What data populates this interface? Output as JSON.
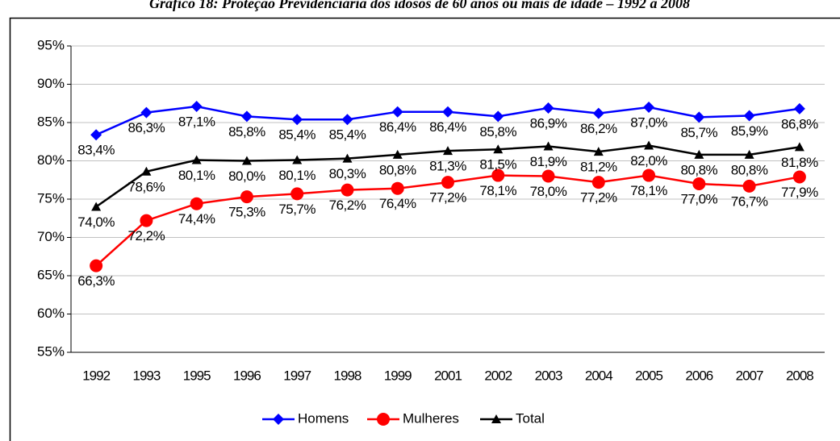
{
  "chart_data": {
    "type": "line",
    "title": "Gráfico 18: Proteção Previdenciária dos idosos de 60 anos ou mais de idade – 1992 a 2008",
    "categories": [
      "1992",
      "1993",
      "1995",
      "1996",
      "1997",
      "1998",
      "1999",
      "2001",
      "2002",
      "2003",
      "2004",
      "2005",
      "2006",
      "2007",
      "2008"
    ],
    "series": [
      {
        "name": "Homens",
        "color": "#0000ff",
        "marker": "diamond",
        "values": [
          83.4,
          86.3,
          87.1,
          85.8,
          85.4,
          85.4,
          86.4,
          86.4,
          85.8,
          86.9,
          86.2,
          87.0,
          85.7,
          85.9,
          86.8
        ],
        "value_labels": [
          "83,4%",
          "86,3%",
          "87,1%",
          "85,8%",
          "85,4%",
          "85,4%",
          "86,4%",
          "86,4%",
          "85,8%",
          "86,9%",
          "86,2%",
          "87,0%",
          "85,7%",
          "85,9%",
          "86,8%"
        ]
      },
      {
        "name": "Mulheres",
        "color": "#ff0000",
        "marker": "circle",
        "values": [
          66.3,
          72.2,
          74.4,
          75.3,
          75.7,
          76.2,
          76.4,
          77.2,
          78.1,
          78.0,
          77.2,
          78.1,
          77.0,
          76.7,
          77.9
        ],
        "value_labels": [
          "66,3%",
          "72,2%",
          "74,4%",
          "75,3%",
          "75,7%",
          "76,2%",
          "76,4%",
          "77,2%",
          "78,1%",
          "78,0%",
          "77,2%",
          "78,1%",
          "77,0%",
          "76,7%",
          "77,9%"
        ]
      },
      {
        "name": "Total",
        "color": "#000000",
        "marker": "triangle",
        "values": [
          74.0,
          78.6,
          80.1,
          80.0,
          80.1,
          80.3,
          80.8,
          81.3,
          81.5,
          81.9,
          81.2,
          82.0,
          80.8,
          80.8,
          81.8
        ],
        "value_labels": [
          "74,0%",
          "78,6%",
          "80,1%",
          "80,0%",
          "80,1%",
          "80,3%",
          "80,8%",
          "81,3%",
          "81,5%",
          "81,9%",
          "81,2%",
          "82,0%",
          "80,8%",
          "80,8%",
          "81,8%"
        ]
      }
    ],
    "ylim": [
      55,
      95
    ],
    "yticks": [
      {
        "value": 55,
        "label": "55%"
      },
      {
        "value": 60,
        "label": "60%"
      },
      {
        "value": 65,
        "label": "65%"
      },
      {
        "value": 70,
        "label": "70%"
      },
      {
        "value": 75,
        "label": "75%"
      },
      {
        "value": 80,
        "label": "80%"
      },
      {
        "value": 85,
        "label": "85%"
      },
      {
        "value": 90,
        "label": "90%"
      },
      {
        "value": 95,
        "label": "95%"
      }
    ],
    "grid": true,
    "legend": "bottom"
  }
}
